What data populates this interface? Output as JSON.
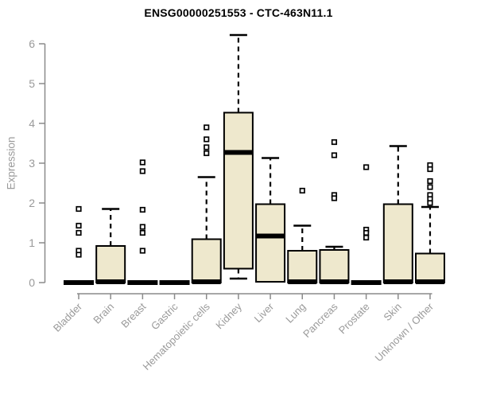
{
  "chart_data": {
    "type": "boxplot",
    "title": "ENSG00000251553 - CTC-463N11.1",
    "ylabel": "Expression",
    "xlabel": "",
    "ylim": [
      0,
      6.3
    ],
    "yticks": [
      0,
      1,
      2,
      3,
      4,
      5,
      6
    ],
    "grid": false,
    "legend": "none",
    "categories": [
      "Bladder",
      "Brain",
      "Breast",
      "Gastric",
      "Hematopoietic cells",
      "Kidney",
      "Liver",
      "Lung",
      "Pancreas",
      "Prostate",
      "Skin",
      "Unknown / Other"
    ],
    "series": [
      {
        "name": "Bladder",
        "min": 0,
        "q1": 0,
        "median": 0,
        "q3": 0,
        "max": 0,
        "outliers": [
          1.85,
          1.43,
          1.25,
          0.8,
          0.7
        ]
      },
      {
        "name": "Brain",
        "min": 0,
        "q1": 0,
        "median": 0.02,
        "q3": 0.92,
        "max": 1.85,
        "outliers": []
      },
      {
        "name": "Breast",
        "min": 0,
        "q1": 0,
        "median": 0,
        "q3": 0,
        "max": 0,
        "outliers": [
          3.02,
          2.8,
          1.83,
          1.4,
          1.25,
          0.8
        ]
      },
      {
        "name": "Gastric",
        "min": 0,
        "q1": 0,
        "median": 0,
        "q3": 0,
        "max": 0,
        "outliers": []
      },
      {
        "name": "Hematopoietic cells",
        "min": 0,
        "q1": 0,
        "median": 0.02,
        "q3": 1.09,
        "max": 2.65,
        "outliers": [
          3.9,
          3.6,
          3.4,
          3.25
        ]
      },
      {
        "name": "Kidney",
        "min": 0.1,
        "q1": 0.35,
        "median": 3.27,
        "q3": 4.27,
        "max": 6.22,
        "outliers": []
      },
      {
        "name": "Liver",
        "min": 0.02,
        "q1": 0.02,
        "median": 1.17,
        "q3": 1.97,
        "max": 3.13,
        "outliers": []
      },
      {
        "name": "Lung",
        "min": 0,
        "q1": 0,
        "median": 0.02,
        "q3": 0.8,
        "max": 1.43,
        "outliers": [
          2.31
        ]
      },
      {
        "name": "Pancreas",
        "min": 0,
        "q1": 0,
        "median": 0.02,
        "q3": 0.82,
        "max": 0.9,
        "outliers": [
          3.53,
          3.2,
          2.2,
          2.12
        ]
      },
      {
        "name": "Prostate",
        "min": 0,
        "q1": 0,
        "median": 0,
        "q3": 0,
        "max": 0,
        "outliers": [
          2.9,
          1.33,
          1.25,
          1.13
        ]
      },
      {
        "name": "Skin",
        "min": 0,
        "q1": 0,
        "median": 0.02,
        "q3": 1.97,
        "max": 3.43,
        "outliers": []
      },
      {
        "name": "Unknown / Other",
        "min": 0,
        "q1": 0,
        "median": 0.02,
        "q3": 0.73,
        "max": 1.9,
        "outliers": [
          2.95,
          2.85,
          2.55,
          2.4,
          2.2,
          2.1,
          2.0
        ]
      }
    ],
    "colors": {
      "background": "#ffffff",
      "box_fill": "#EEE8CD",
      "box_border": "#000000",
      "median": "#000000",
      "whisker": "#000000",
      "outlier": "#000000",
      "axis_line": "#8a8a8a",
      "tick_label": "#9a9a9a",
      "title": "#000000"
    }
  }
}
